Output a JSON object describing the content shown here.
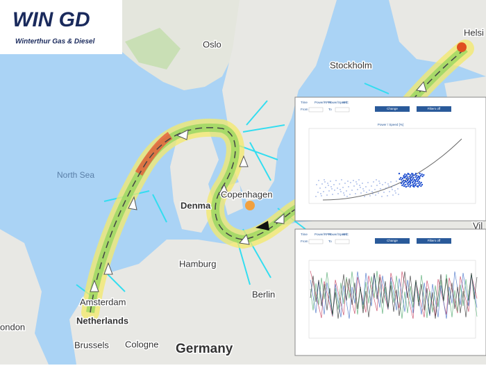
{
  "logo": {
    "title": "WIN GD",
    "subtitle": "Winterthur Gas & Diesel"
  },
  "map_labels": {
    "oslo": "Oslo",
    "stockholm": "Stockholm",
    "helsinki": "Helsi",
    "north_sea": "North Sea",
    "copenhagen": "Copenhagen",
    "denmark": "Denma",
    "hamburg": "Hamburg",
    "berlin": "Berlin",
    "amsterdam": "Amsterdam",
    "netherlands": "Netherlands",
    "brussels": "Brussels",
    "cologne": "Cologne",
    "germany": "Germany",
    "london": "ondon",
    "vilnius": "Vil"
  },
  "panels": [
    {
      "tabs": [
        "Time",
        "Power/RPM",
        "Power/Speed",
        "SFC"
      ],
      "from": "From",
      "to": "To",
      "buttons": [
        "Change",
        "Filters off"
      ],
      "chart_title": "Power / Speed [%]"
    },
    {
      "tabs": [
        "Time",
        "Power/RPM",
        "Power/Speed",
        "SFC"
      ],
      "from": "From",
      "to": "To",
      "buttons": [
        "Change",
        "Filters off"
      ]
    }
  ]
}
